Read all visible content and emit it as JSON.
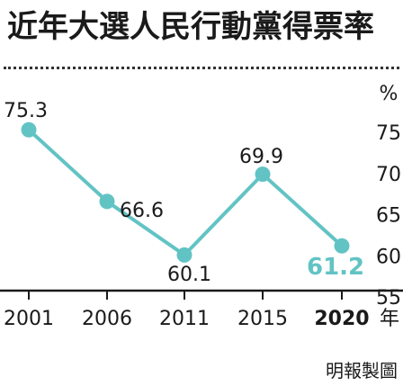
{
  "title": "近年大選人民行動黨得票率",
  "credit": "明報製圖",
  "chart_data": {
    "type": "line",
    "title": "近年大選人民行動黨得票率",
    "x": [
      "2001",
      "2006",
      "2011",
      "2015",
      "2020"
    ],
    "x_unit": "年",
    "y_unit": "%",
    "yticks": [
      75,
      70,
      65,
      60,
      55
    ],
    "ylim": [
      55,
      75
    ],
    "series": [
      {
        "values": [
          75.3,
          66.6,
          60.1,
          69.9,
          61.2
        ],
        "labels": [
          "75.3",
          "66.6",
          "60.1",
          "69.9",
          "61.2"
        ],
        "color": "#62c3c4"
      }
    ],
    "highlight_index": 4,
    "highlight_color": "#62c3c4",
    "grid": false,
    "legend": "none"
  }
}
